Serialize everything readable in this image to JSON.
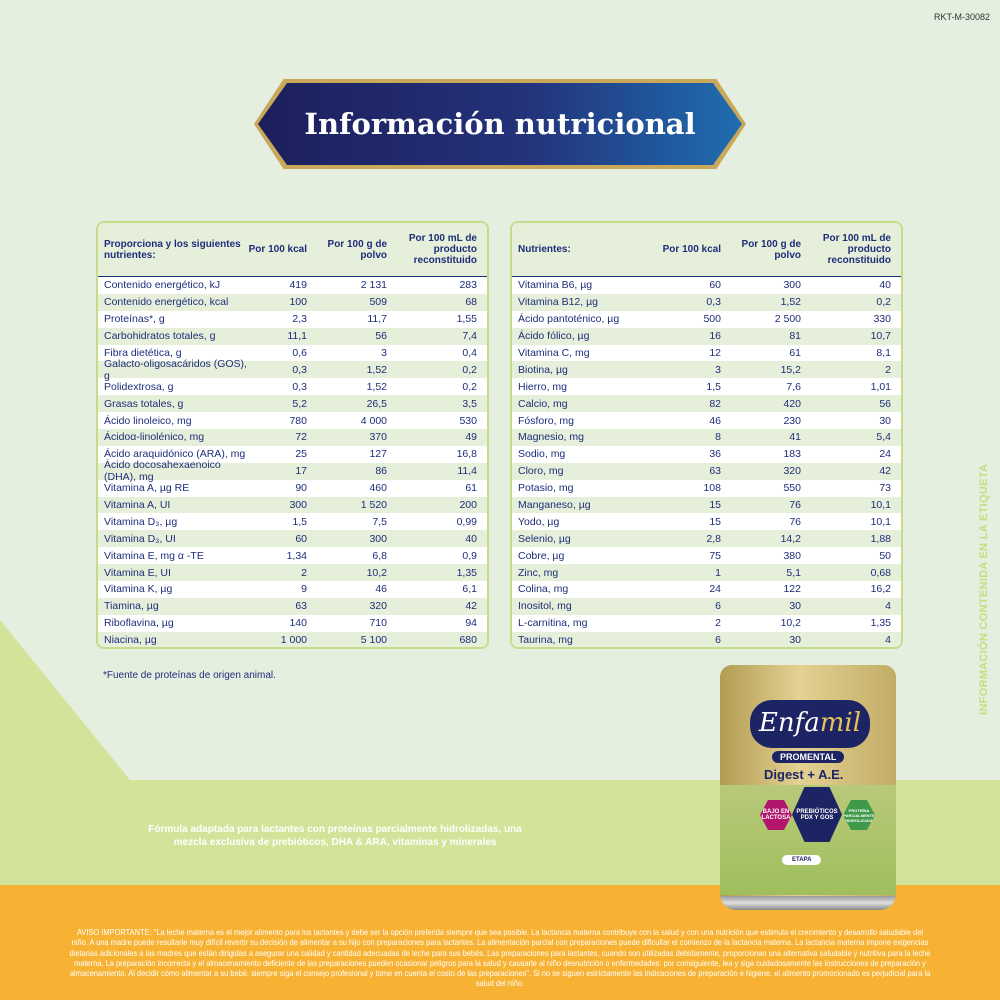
{
  "code": "RKT-M-30082",
  "title": "Información nutricional",
  "left_table": {
    "headers": [
      "Proporciona y los siguientes nutrientes:",
      "Por 100 kcal",
      "Por 100 g de polvo",
      "Por 100 mL de producto reconstituido"
    ],
    "rows": [
      [
        "Contenido energético, kJ",
        "419",
        "2 131",
        "283"
      ],
      [
        "Contenido energético, kcal",
        "100",
        "509",
        "68"
      ],
      [
        "Proteínas*, g",
        "2,3",
        "11,7",
        "1,55"
      ],
      [
        "Carbohidratos totales, g",
        "11,1",
        "56",
        "7,4"
      ],
      [
        "Fibra dietética, g",
        "0,6",
        "3",
        "0,4"
      ],
      [
        "Galacto-oligosacáridos (GOS), g",
        "0,3",
        "1,52",
        "0,2"
      ],
      [
        "Polidextrosa, g",
        "0,3",
        "1,52",
        "0,2"
      ],
      [
        "Grasas totales, g",
        "5,2",
        "26,5",
        "3,5"
      ],
      [
        "Ácido linoleico, mg",
        "780",
        "4 000",
        "530"
      ],
      [
        "Ácidoα-linolénico, mg",
        "72",
        "370",
        "49"
      ],
      [
        "Ácido araquidónico (ARA), mg",
        "25",
        "127",
        "16,8"
      ],
      [
        "Ácido docosahexaenoico (DHA), mg",
        "17",
        "86",
        "11,4"
      ],
      [
        "Vitamina A, µg RE",
        "90",
        "460",
        "61"
      ],
      [
        "Vitamina A, UI",
        "300",
        "1 520",
        "200"
      ],
      [
        "Vitamina D₃, µg",
        "1,5",
        "7,5",
        "0,99"
      ],
      [
        "Vitamina D₃, UI",
        "60",
        "300",
        "40"
      ],
      [
        "Vitamina E, mg α -TE",
        "1,34",
        "6,8",
        "0,9"
      ],
      [
        "Vitamina E, UI",
        "2",
        "10,2",
        "1,35"
      ],
      [
        "Vitamina K, µg",
        "9",
        "46",
        "6,1"
      ],
      [
        "Tiamina, µg",
        "63",
        "320",
        "42"
      ],
      [
        "Riboflavina, µg",
        "140",
        "710",
        "94"
      ],
      [
        "Niacina, µg",
        "1 000",
        "5 100",
        "680"
      ]
    ]
  },
  "right_table": {
    "headers": [
      "Nutrientes:",
      "Por 100 kcal",
      "Por 100 g de polvo",
      "Por 100 mL de producto reconstituido"
    ],
    "rows": [
      [
        "Vitamina B6, µg",
        "60",
        "300",
        "40"
      ],
      [
        "Vitamina B12, µg",
        "0,3",
        "1,52",
        "0,2"
      ],
      [
        "Ácido pantoténico, µg",
        "500",
        "2 500",
        "330"
      ],
      [
        "Ácido fólico, µg",
        "16",
        "81",
        "10,7"
      ],
      [
        "Vitamina C, mg",
        "12",
        "61",
        "8,1"
      ],
      [
        "Biotina, µg",
        "3",
        "15,2",
        "2"
      ],
      [
        "Hierro, mg",
        "1,5",
        "7,6",
        "1,01"
      ],
      [
        "Calcio, mg",
        "82",
        "420",
        "56"
      ],
      [
        "Fósforo, mg",
        "46",
        "230",
        "30"
      ],
      [
        "Magnesio, mg",
        "8",
        "41",
        "5,4"
      ],
      [
        "Sodio, mg",
        "36",
        "183",
        "24"
      ],
      [
        "Cloro, mg",
        "63",
        "320",
        "42"
      ],
      [
        "Potasio, mg",
        "108",
        "550",
        "73"
      ],
      [
        "Manganeso, µg",
        "15",
        "76",
        "10,1"
      ],
      [
        "Yodo, µg",
        "15",
        "76",
        "10,1"
      ],
      [
        "Selenio, µg",
        "2,8",
        "14,2",
        "1,88"
      ],
      [
        "Cobre, µg",
        "75",
        "380",
        "50"
      ],
      [
        "Zinc, mg",
        "1",
        "5,1",
        "0,68"
      ],
      [
        "Colina, mg",
        "24",
        "122",
        "16,2"
      ],
      [
        "Inositol, mg",
        "6",
        "30",
        "4"
      ],
      [
        "L-carnitina, mg",
        "2",
        "10,2",
        "1,35"
      ],
      [
        "Taurina, mg",
        "6",
        "30",
        "4"
      ]
    ]
  },
  "footnote": "*Fuente de proteínas de origen animal.",
  "description": "Fórmula adaptada para lactantes con proteínas parcialmente hidrolizadas, una mezcla exclusiva de prebióticos, DHA & ARA, vitaminas y minerales",
  "side_label": "INFORMACIÓN CONTENIDA EN LA ETIQUETA",
  "product": {
    "brand_a": "Enfa",
    "brand_b": "mil",
    "line": "PROMENTAL",
    "variant": "Digest + A.E.",
    "badges": [
      "BAJO EN LACTOSA",
      "PREBIÓTICOS PDX Y GOS",
      "PROTEÍNA PARCIALMENTE HIDROLIZADA"
    ],
    "stage": "ETAPA"
  },
  "warning": "AVISO IMPORTANTE: \"La leche materna es el mejor alimento para los lactantes y debe ser la opción preferida siempre que sea posible. La lactancia materna contribuye con la salud y con una nutrición que estimula el crecimiento y desarrollo saludable del niño. A una madre puede resultarle muy difícil revertir su decisión de alimentar a su hijo con preparaciones para lactantes. La alimentación parcial con preparaciones puede dificultar el comienzo de la lactancia materna. La lactancia materna impone exigencias dietarias adicionales a las madres que están dirigidas a asegurar una calidad y cantidad adecuadas de leche para sus bebés. Las preparaciones para lactantes, cuando son utilizadas debidamente, proporcionan una alternativa saludable y nutritiva para la leche materna. La preparación incorrecta y el almacenamiento deficiente de las preparaciones pueden ocasionar peligros para la salud y causarle al niño desnutrición o enfermedades: por consiguiente, lea y siga cuidadosamente las instrucciones de preparación y almacenamiento. Al decidir cómo alimentar a su bebé, siempre siga el consejo profesional y tome en cuenta el costo de las preparaciones\". Si no se siguen estrictamente las indicaciones de preparación e higiene, el alimento promocionado es perjudicial para la salud del niño.",
  "colors": {
    "background": "#e5efe0",
    "navy": "#1e2d7a",
    "footer": "#f7b233",
    "band": "#d3e39a"
  }
}
